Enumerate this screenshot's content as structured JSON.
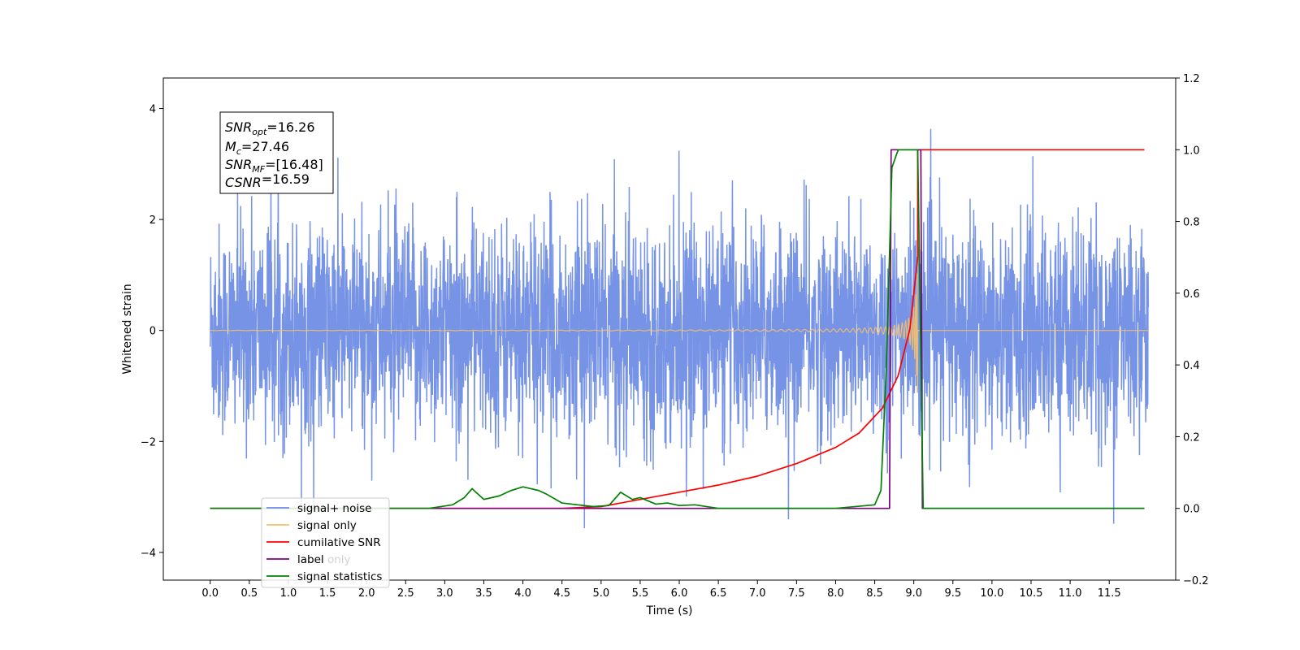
{
  "chart_data": {
    "type": "line",
    "title": "",
    "xlabel": "Time (s)",
    "ylabel": "Whitened strain",
    "y2label": "",
    "xlim": [
      -0.6,
      12.35
    ],
    "ylim": [
      -4.5,
      4.55
    ],
    "y2lim": [
      -0.2,
      1.2
    ],
    "x_ticks": [
      0.0,
      0.5,
      1.0,
      1.5,
      2.0,
      2.5,
      3.0,
      3.5,
      4.0,
      4.5,
      5.0,
      5.5,
      6.0,
      6.5,
      7.0,
      7.5,
      8.0,
      8.5,
      9.0,
      9.5,
      10.0,
      10.5,
      11.0,
      11.5
    ],
    "x_tick_labels": [
      "0.0",
      "0.5",
      "1.0",
      "1.5",
      "2.0",
      "2.5",
      "3.0",
      "3.5",
      "4.0",
      "4.5",
      "5.0",
      "5.5",
      "6.0",
      "6.5",
      "7.0",
      "7.5",
      "8.0",
      "8.5",
      "9.0",
      "9.5",
      "10.0",
      "10.5",
      "11.0",
      "11.5"
    ],
    "y_ticks": [
      -4,
      -2,
      0,
      2,
      4
    ],
    "y_tick_labels": [
      "−4",
      "−2",
      "0",
      "2",
      "4"
    ],
    "y2_ticks": [
      -0.2,
      0.0,
      0.2,
      0.4,
      0.6,
      0.8,
      1.0,
      1.2
    ],
    "y2_tick_labels": [
      "−0.2",
      "0.0",
      "0.2",
      "0.4",
      "0.6",
      "0.8",
      "1.0",
      "1.2"
    ],
    "grid": false,
    "legend_position": "lower-left",
    "series": [
      {
        "name": "signal+ noise",
        "color": "#6f8de5",
        "axis": "left",
        "kind": "noise"
      },
      {
        "name": "signal only",
        "color": "#f5c06a",
        "axis": "left",
        "kind": "chirp"
      },
      {
        "name": "cumilative SNR",
        "color": "#ff0000",
        "axis": "right",
        "x": [
          0.0,
          4.5,
          5.0,
          5.5,
          6.0,
          6.5,
          7.0,
          7.5,
          8.0,
          8.3,
          8.6,
          8.8,
          8.95,
          9.05,
          9.05,
          11.95
        ],
        "y": [
          0.0,
          0.0,
          0.005,
          0.025,
          0.045,
          0.065,
          0.09,
          0.125,
          0.17,
          0.21,
          0.28,
          0.37,
          0.5,
          0.7,
          1.0,
          1.0
        ]
      },
      {
        "name": "label",
        "color": "#800080",
        "axis": "right",
        "x": [
          0.0,
          8.69,
          8.71,
          9.09,
          9.11,
          11.95
        ],
        "y": [
          0.0,
          0.0,
          1.0,
          1.0,
          0.0,
          0.0
        ]
      },
      {
        "name": "signal statistics",
        "color": "#008000",
        "axis": "right",
        "x": [
          0.0,
          2.0,
          2.8,
          3.1,
          3.25,
          3.35,
          3.5,
          3.7,
          3.85,
          4.0,
          4.1,
          4.2,
          4.3,
          4.5,
          4.7,
          4.9,
          5.1,
          5.25,
          5.4,
          5.5,
          5.7,
          5.85,
          6.0,
          6.2,
          6.5,
          8.0,
          8.5,
          8.58,
          8.65,
          8.72,
          8.8,
          9.0,
          9.05,
          9.12,
          11.95
        ],
        "y": [
          0.0,
          0.0,
          0.0,
          0.01,
          0.03,
          0.055,
          0.025,
          0.035,
          0.05,
          0.06,
          0.055,
          0.05,
          0.04,
          0.015,
          0.01,
          0.005,
          0.008,
          0.045,
          0.025,
          0.03,
          0.012,
          0.015,
          0.008,
          0.01,
          0.0,
          0.0,
          0.01,
          0.05,
          0.4,
          0.95,
          1.0,
          1.0,
          1.0,
          0.0,
          0.0
        ]
      }
    ],
    "annotation": {
      "lines": [
        {
          "base": "SNR",
          "sub": "opt",
          "value": "=16.26"
        },
        {
          "base": "M",
          "sub": "c",
          "value": "=27.46"
        },
        {
          "base": "SNR",
          "sub": "MF",
          "value": "=[16.48]"
        },
        {
          "base": "CSNR",
          "sub": "",
          "value": "=16.59"
        }
      ]
    },
    "legend_hidden_text": "label only"
  }
}
